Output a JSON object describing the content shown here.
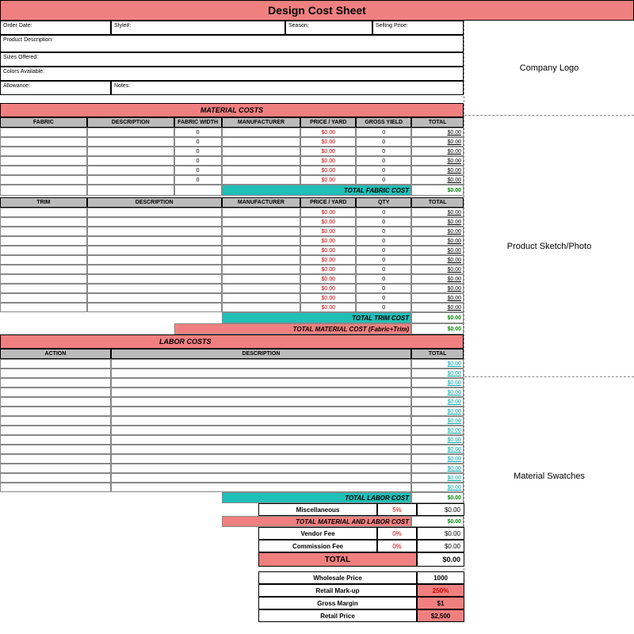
{
  "title": "Design Cost Sheet",
  "info": {
    "order_date": "Order Date:",
    "style": "Style#:",
    "season": "Season:",
    "selling_price": "Selling Price:",
    "product_desc": "Product Description:",
    "sizes_offered": "Sizes Offered:",
    "colors_available": "Colors Available:",
    "allowance": "Allowance:",
    "notes": "Notes:"
  },
  "right_panels": {
    "logo": "Company Logo",
    "sketch": "Product Sketch/Photo",
    "swatches": "Material Swatches"
  },
  "material_costs": {
    "header": "MATERIAL COSTS",
    "fabric_cols": [
      "FABRIC",
      "DESCRIPTION",
      "FABRIC WIDTH",
      "MANUFACTURER",
      "PRICE / YARD",
      "GROSS YIELD",
      "TOTAL"
    ],
    "fabric_rows": [
      {
        "width": "0",
        "price": "$0.00",
        "yield": "0",
        "total": "$0.00"
      },
      {
        "width": "0",
        "price": "$0.00",
        "yield": "0",
        "total": "$0.00"
      },
      {
        "width": "0",
        "price": "$0.00",
        "yield": "0",
        "total": "$0.00"
      },
      {
        "width": "0",
        "price": "$0.00",
        "yield": "0",
        "total": "$0.00"
      },
      {
        "width": "0",
        "price": "$0.00",
        "yield": "0",
        "total": "$0.00"
      },
      {
        "width": "0",
        "price": "$0.00",
        "yield": "0",
        "total": "$0.00"
      }
    ],
    "total_fabric_label": "TOTAL FABRIC COST",
    "total_fabric_value": "$0.00",
    "trim_cols": [
      "TRIM",
      "DESCRIPTION",
      "MANUFACTURER",
      "PRICE / YARD",
      "QTY",
      "TOTAL"
    ],
    "trim_rows": [
      {
        "price": "$0.00",
        "qty": "0",
        "total": "$0.00"
      },
      {
        "price": "$0.00",
        "qty": "0",
        "total": "$0.00"
      },
      {
        "price": "$0.00",
        "qty": "0",
        "total": "$0.00"
      },
      {
        "price": "$0.00",
        "qty": "0",
        "total": "$0.00"
      },
      {
        "price": "$0.00",
        "qty": "0",
        "total": "$0.00"
      },
      {
        "price": "$0.00",
        "qty": "0",
        "total": "$0.00"
      },
      {
        "price": "$0.00",
        "qty": "0",
        "total": "$0.00"
      },
      {
        "price": "$0.00",
        "qty": "0",
        "total": "$0.00"
      },
      {
        "price": "$0.00",
        "qty": "0",
        "total": "$0.00"
      },
      {
        "price": "$0.00",
        "qty": "0",
        "total": "$0.00"
      },
      {
        "price": "$0.00",
        "qty": "0",
        "total": "$0.00"
      }
    ],
    "total_trim_label": "TOTAL TRIM COST",
    "total_trim_value": "$0.00",
    "total_material_label": "TOTAL MATERIAL COST (Fabric+Trim)",
    "total_material_value": "$0.00"
  },
  "labor_costs": {
    "header": "LABOR COSTS",
    "cols": [
      "ACTION",
      "DESCRIPTION",
      "TOTAL"
    ],
    "rows": [
      {
        "total": "$0.00"
      },
      {
        "total": "$0.00"
      },
      {
        "total": "$0.00"
      },
      {
        "total": "$0.00"
      },
      {
        "total": "$0.00"
      },
      {
        "total": "$0.00"
      },
      {
        "total": "$0.00"
      },
      {
        "total": "$0.00"
      },
      {
        "total": "$0.00"
      },
      {
        "total": "$0.00"
      },
      {
        "total": "$0.00"
      },
      {
        "total": "$0.00"
      },
      {
        "total": "$0.00"
      },
      {
        "total": "$0.00"
      }
    ],
    "total_labor_label": "TOTAL LABOR COST",
    "total_labor_value": "$0.00"
  },
  "summary": {
    "misc_label": "Miscellaneous",
    "misc_pct": "5%",
    "misc_val": "$0.00",
    "total_ml_label": "TOTAL MATERIAL AND LABOR COST",
    "total_ml_value": "$0.00",
    "vendor_label": "Vendor Fee",
    "vendor_pct": "0%",
    "vendor_val": "$0.00",
    "comm_label": "Commission Fee",
    "comm_pct": "0%",
    "comm_val": "$0.00",
    "total_label": "TOTAL",
    "total_value": "$0.00",
    "wholesale_label": "Wholesale Price",
    "wholesale_val": "1000",
    "markup_label": "Retail Mark-up",
    "markup_val": "250%",
    "margin_label": "Gross Margin",
    "margin_val": "$1",
    "retail_label": "Retail Price",
    "retail_val": "$2,500"
  },
  "colors": {
    "pink": "#f08080",
    "teal": "#1fbfb8",
    "gray": "#bbbbbb",
    "red": "#cc0000",
    "green": "#008800"
  }
}
